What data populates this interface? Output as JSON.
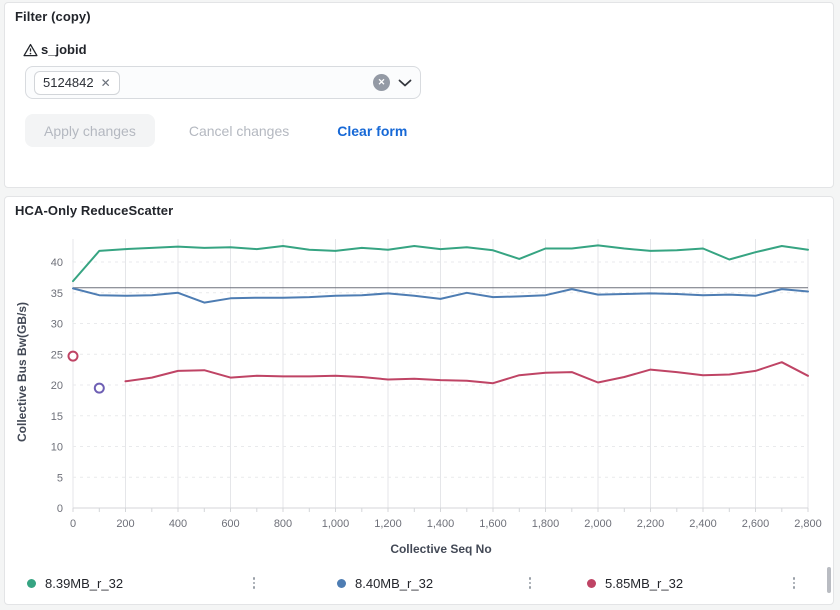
{
  "page": {
    "background": "#f4f5f5"
  },
  "icons": {
    "warning": "warning-triangle",
    "tag_remove": "x",
    "clear_all": "circle-x",
    "dropdown": "chevron-down",
    "legend_menu": "kebab-vertical-dots"
  },
  "filter_panel": {
    "title": "Filter (copy)",
    "field": {
      "label": "s_jobid",
      "selected_tag": "5124842",
      "tag_remove_glyph": "✕",
      "clear_all_glyph": "✕"
    },
    "buttons": {
      "apply": "Apply changes",
      "cancel": "Cancel changes",
      "clear": "Clear form"
    },
    "colors": {
      "clear_link": "#1668d6",
      "disabled_text": "#b4b8c0"
    }
  },
  "chart_panel": {
    "title": "HCA-Only ReduceScatter"
  },
  "chart_data": {
    "type": "line",
    "title": "HCA-Only ReduceScatter",
    "xlabel": "Collective Seq No",
    "ylabel": "Collective Bus Bw(GB/s)",
    "xlim": [
      0,
      2800
    ],
    "ylim": [
      0,
      44
    ],
    "grid": true,
    "legend_position": "bottom",
    "x_ticks": [
      0,
      200,
      400,
      600,
      800,
      1000,
      1200,
      1400,
      1600,
      1800,
      2000,
      2200,
      2400,
      2600,
      2800
    ],
    "x_tick_labels": [
      "0",
      "200",
      "400",
      "600",
      "800",
      "1,000",
      "1,200",
      "1,400",
      "1,600",
      "1,800",
      "2,000",
      "2,200",
      "2,400",
      "2,600",
      "2,800"
    ],
    "x_minor_tick_step": 100,
    "y_ticks": [
      0,
      5,
      10,
      15,
      20,
      25,
      30,
      35,
      40
    ],
    "reference_line_y": 35.8,
    "reference_line_color": "#6d707b",
    "series": [
      {
        "name": "8.39MB_r_32",
        "color": "#36a482",
        "x": [
          0,
          100,
          200,
          300,
          400,
          500,
          600,
          700,
          800,
          900,
          1000,
          1100,
          1200,
          1300,
          1400,
          1500,
          1600,
          1700,
          1800,
          1900,
          2000,
          2100,
          2200,
          2300,
          2400,
          2500,
          2600,
          2700,
          2800
        ],
        "values": [
          36.9,
          41.8,
          42.1,
          42.3,
          42.5,
          42.3,
          42.4,
          42.1,
          42.6,
          42.0,
          41.8,
          42.3,
          42.0,
          42.6,
          42.1,
          42.4,
          41.9,
          40.5,
          42.2,
          42.2,
          42.7,
          42.2,
          41.8,
          41.9,
          42.2,
          40.4,
          41.6,
          42.6,
          42.0
        ]
      },
      {
        "name": "8.40MB_r_32",
        "color": "#4e7db3",
        "x": [
          0,
          100,
          200,
          300,
          400,
          500,
          600,
          700,
          800,
          900,
          1000,
          1100,
          1200,
          1300,
          1400,
          1500,
          1600,
          1700,
          1800,
          1900,
          2000,
          2100,
          2200,
          2300,
          2400,
          2500,
          2600,
          2700,
          2800
        ],
        "values": [
          35.7,
          34.6,
          34.5,
          34.6,
          35.0,
          33.4,
          34.1,
          34.2,
          34.2,
          34.3,
          34.5,
          34.6,
          34.9,
          34.5,
          34.0,
          35.0,
          34.3,
          34.4,
          34.6,
          35.6,
          34.7,
          34.8,
          34.9,
          34.8,
          34.6,
          34.7,
          34.5,
          35.6,
          35.2
        ]
      },
      {
        "name": "5.85MB_r_32",
        "color": "#bf4465",
        "x": [
          200,
          300,
          400,
          500,
          600,
          700,
          800,
          900,
          1000,
          1100,
          1200,
          1300,
          1400,
          1500,
          1600,
          1700,
          1800,
          1900,
          2000,
          2100,
          2200,
          2300,
          2400,
          2500,
          2600,
          2700,
          2800
        ],
        "values": [
          20.6,
          21.2,
          22.3,
          22.4,
          21.2,
          21.5,
          21.4,
          21.4,
          21.5,
          21.3,
          20.9,
          21.0,
          20.8,
          20.7,
          20.3,
          21.6,
          22.0,
          22.1,
          20.4,
          21.3,
          22.5,
          22.1,
          21.6,
          21.7,
          22.3,
          23.7,
          21.5
        ],
        "isolated_points": [
          {
            "x": 0,
            "y": 24.7
          }
        ]
      }
    ],
    "unlabeled_points": [
      {
        "x": 100,
        "y": 19.5,
        "color": "#6e5fb4"
      }
    ]
  }
}
